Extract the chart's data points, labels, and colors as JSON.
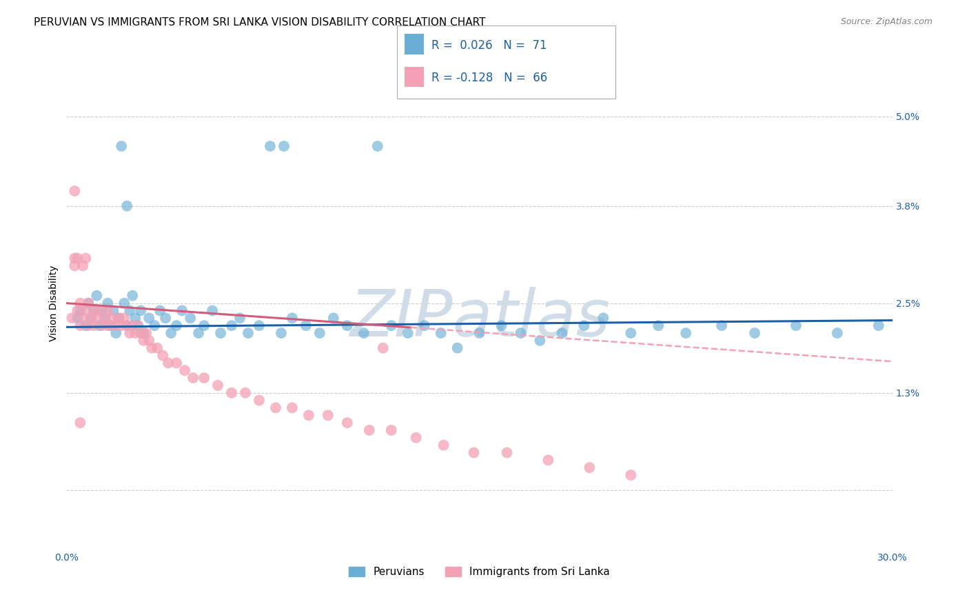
{
  "title": "PERUVIAN VS IMMIGRANTS FROM SRI LANKA VISION DISABILITY CORRELATION CHART",
  "source": "Source: ZipAtlas.com",
  "ylabel": "Vision Disability",
  "xlim": [
    0.0,
    0.3
  ],
  "ylim": [
    -0.008,
    0.058
  ],
  "ytick_vals": [
    0.0,
    0.013,
    0.025,
    0.038,
    0.05
  ],
  "ytick_labels": [
    "",
    "1.3%",
    "2.5%",
    "3.8%",
    "5.0%"
  ],
  "xtick_vals": [
    0.0,
    0.05,
    0.1,
    0.15,
    0.2,
    0.25,
    0.3
  ],
  "xtick_labels": [
    "0.0%",
    "",
    "",
    "",
    "",
    "",
    "30.0%"
  ],
  "grid_color": "#cccccc",
  "background_color": "#ffffff",
  "blue_color": "#6aaed6",
  "pink_color": "#f4a0b5",
  "blue_line_color": "#1a5fa8",
  "pink_line_color": "#d45a7a",
  "pink_dash_color": "#f4a0b5",
  "legend_label_blue": "Peruvians",
  "legend_label_pink": "Immigrants from Sri Lanka",
  "title_fontsize": 11,
  "source_fontsize": 9,
  "label_fontsize": 10,
  "tick_fontsize": 10,
  "watermark": "ZIPatlas",
  "watermark_color": "#d0dde8",
  "blue_x": [
    0.004,
    0.005,
    0.007,
    0.008,
    0.009,
    0.01,
    0.011,
    0.012,
    0.013,
    0.014,
    0.015,
    0.016,
    0.017,
    0.018,
    0.019,
    0.02,
    0.021,
    0.022,
    0.023,
    0.024,
    0.025,
    0.026,
    0.027,
    0.028,
    0.03,
    0.032,
    0.034,
    0.036,
    0.038,
    0.04,
    0.042,
    0.045,
    0.048,
    0.05,
    0.053,
    0.056,
    0.06,
    0.063,
    0.066,
    0.07,
    0.074,
    0.078,
    0.082,
    0.087,
    0.092,
    0.097,
    0.102,
    0.108,
    0.113,
    0.118,
    0.124,
    0.13,
    0.136,
    0.142,
    0.15,
    0.158,
    0.165,
    0.172,
    0.18,
    0.188,
    0.195,
    0.205,
    0.215,
    0.225,
    0.238,
    0.25,
    0.265,
    0.28,
    0.295,
    0.022,
    0.079
  ],
  "blue_y": [
    0.023,
    0.024,
    0.022,
    0.025,
    0.023,
    0.024,
    0.026,
    0.022,
    0.024,
    0.023,
    0.025,
    0.022,
    0.024,
    0.021,
    0.023,
    0.046,
    0.025,
    0.022,
    0.024,
    0.026,
    0.023,
    0.022,
    0.024,
    0.021,
    0.023,
    0.022,
    0.024,
    0.023,
    0.021,
    0.022,
    0.024,
    0.023,
    0.021,
    0.022,
    0.024,
    0.021,
    0.022,
    0.023,
    0.021,
    0.022,
    0.046,
    0.021,
    0.023,
    0.022,
    0.021,
    0.023,
    0.022,
    0.021,
    0.046,
    0.022,
    0.021,
    0.022,
    0.021,
    0.019,
    0.021,
    0.022,
    0.021,
    0.02,
    0.021,
    0.022,
    0.023,
    0.021,
    0.022,
    0.021,
    0.022,
    0.021,
    0.022,
    0.021,
    0.022,
    0.038,
    0.046
  ],
  "pink_x": [
    0.002,
    0.003,
    0.003,
    0.004,
    0.004,
    0.005,
    0.005,
    0.006,
    0.006,
    0.007,
    0.007,
    0.008,
    0.008,
    0.009,
    0.01,
    0.01,
    0.011,
    0.012,
    0.013,
    0.014,
    0.015,
    0.015,
    0.016,
    0.017,
    0.018,
    0.019,
    0.02,
    0.021,
    0.022,
    0.023,
    0.024,
    0.025,
    0.026,
    0.027,
    0.028,
    0.029,
    0.03,
    0.031,
    0.033,
    0.035,
    0.037,
    0.04,
    0.043,
    0.046,
    0.05,
    0.055,
    0.06,
    0.065,
    0.07,
    0.076,
    0.082,
    0.088,
    0.095,
    0.102,
    0.11,
    0.118,
    0.127,
    0.137,
    0.148,
    0.16,
    0.175,
    0.19,
    0.205,
    0.003,
    0.005,
    0.115
  ],
  "pink_y": [
    0.023,
    0.04,
    0.03,
    0.031,
    0.024,
    0.009,
    0.025,
    0.03,
    0.023,
    0.031,
    0.024,
    0.022,
    0.025,
    0.023,
    0.024,
    0.022,
    0.023,
    0.024,
    0.022,
    0.023,
    0.022,
    0.024,
    0.022,
    0.023,
    0.022,
    0.023,
    0.022,
    0.023,
    0.022,
    0.021,
    0.022,
    0.021,
    0.022,
    0.021,
    0.02,
    0.021,
    0.02,
    0.019,
    0.019,
    0.018,
    0.017,
    0.017,
    0.016,
    0.015,
    0.015,
    0.014,
    0.013,
    0.013,
    0.012,
    0.011,
    0.011,
    0.01,
    0.01,
    0.009,
    0.008,
    0.008,
    0.007,
    0.006,
    0.005,
    0.005,
    0.004,
    0.003,
    0.002,
    0.031,
    0.022,
    0.019
  ]
}
